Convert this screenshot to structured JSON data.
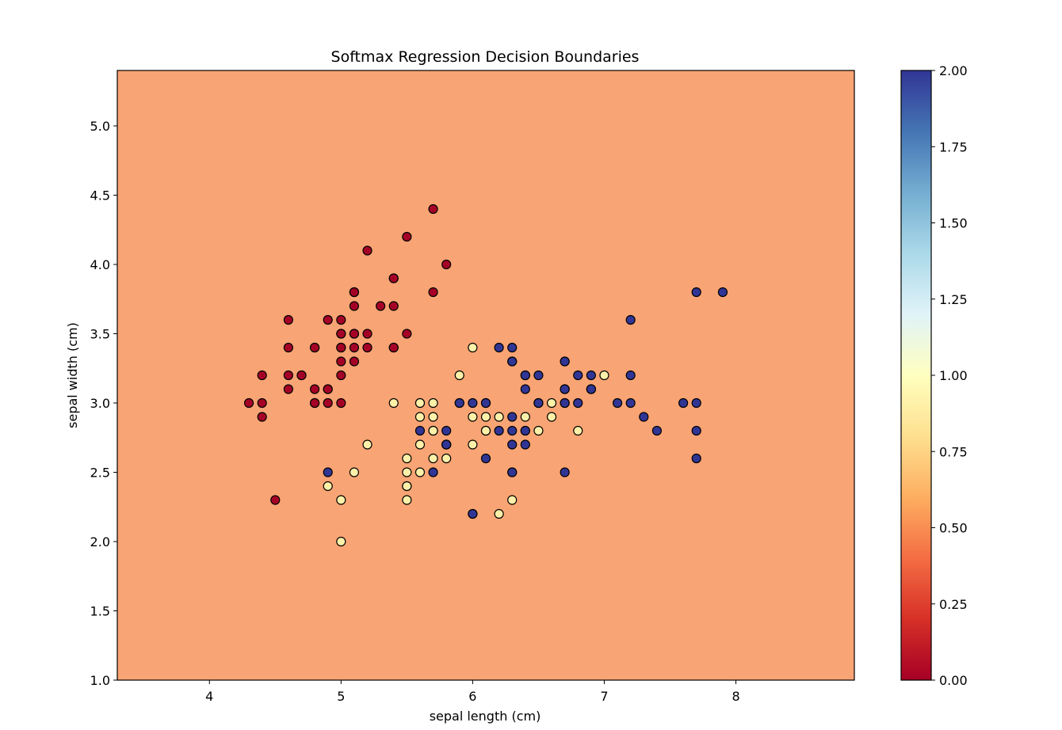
{
  "chart_data": {
    "type": "scatter",
    "title": "Softmax Regression Decision Boundaries",
    "xlabel": "sepal length (cm)",
    "ylabel": "sepal width (cm)",
    "xlim": [
      3.3,
      8.9
    ],
    "ylim": [
      1.0,
      5.4
    ],
    "xticks": [
      4,
      5,
      6,
      7,
      8
    ],
    "xtick_labels": [
      "4",
      "5",
      "6",
      "7",
      "8"
    ],
    "yticks": [
      1.0,
      1.5,
      2.0,
      2.5,
      3.0,
      3.5,
      4.0,
      4.5,
      5.0
    ],
    "ytick_labels": [
      "1.0",
      "1.5",
      "2.0",
      "2.5",
      "3.0",
      "3.5",
      "4.0",
      "4.5",
      "5.0"
    ],
    "grid": false,
    "background_region": {
      "predicted_class_value": 0.5,
      "color": "#f9a474"
    },
    "colorbar": {
      "colormap": "RdYlBu",
      "range": [
        0.0,
        2.0
      ],
      "ticks": [
        0.0,
        0.25,
        0.5,
        0.75,
        1.0,
        1.25,
        1.5,
        1.75,
        2.0
      ],
      "tick_labels": [
        "0.00",
        "0.25",
        "0.50",
        "0.75",
        "1.00",
        "1.25",
        "1.50",
        "1.75",
        "2.00"
      ],
      "stops": [
        "#a50026",
        "#d73027",
        "#f46d43",
        "#fdae61",
        "#fee090",
        "#ffffbf",
        "#e0f3f8",
        "#abd9e9",
        "#74add1",
        "#4575b4",
        "#313695"
      ]
    },
    "class_colors": {
      "0": "#a50026",
      "1": "#fdf1a9",
      "2": "#313695"
    },
    "series": [
      {
        "class": 0,
        "points": [
          [
            5.1,
            3.5
          ],
          [
            4.9,
            3.0
          ],
          [
            4.7,
            3.2
          ],
          [
            4.6,
            3.1
          ],
          [
            5.0,
            3.6
          ],
          [
            5.4,
            3.9
          ],
          [
            4.6,
            3.4
          ],
          [
            5.0,
            3.4
          ],
          [
            4.4,
            2.9
          ],
          [
            4.9,
            3.1
          ],
          [
            5.4,
            3.7
          ],
          [
            4.8,
            3.4
          ],
          [
            4.8,
            3.0
          ],
          [
            4.3,
            3.0
          ],
          [
            5.8,
            4.0
          ],
          [
            5.7,
            4.4
          ],
          [
            5.4,
            3.9
          ],
          [
            5.1,
            3.5
          ],
          [
            5.7,
            3.8
          ],
          [
            5.1,
            3.8
          ],
          [
            5.4,
            3.4
          ],
          [
            5.1,
            3.7
          ],
          [
            4.6,
            3.6
          ],
          [
            5.1,
            3.3
          ],
          [
            4.8,
            3.4
          ],
          [
            5.0,
            3.0
          ],
          [
            5.0,
            3.4
          ],
          [
            5.2,
            3.5
          ],
          [
            5.2,
            3.4
          ],
          [
            4.7,
            3.2
          ],
          [
            4.8,
            3.1
          ],
          [
            5.4,
            3.4
          ],
          [
            5.2,
            4.1
          ],
          [
            5.5,
            4.2
          ],
          [
            4.9,
            3.1
          ],
          [
            5.0,
            3.2
          ],
          [
            5.5,
            3.5
          ],
          [
            4.9,
            3.6
          ],
          [
            4.4,
            3.0
          ],
          [
            5.1,
            3.4
          ],
          [
            5.0,
            3.5
          ],
          [
            4.5,
            2.3
          ],
          [
            4.4,
            3.2
          ],
          [
            5.0,
            3.5
          ],
          [
            5.1,
            3.8
          ],
          [
            4.8,
            3.0
          ],
          [
            5.1,
            3.8
          ],
          [
            4.6,
            3.2
          ],
          [
            5.3,
            3.7
          ],
          [
            5.0,
            3.3
          ]
        ]
      },
      {
        "class": 1,
        "points": [
          [
            7.0,
            3.2
          ],
          [
            6.4,
            3.2
          ],
          [
            6.9,
            3.1
          ],
          [
            5.5,
            2.3
          ],
          [
            6.5,
            2.8
          ],
          [
            5.7,
            2.8
          ],
          [
            6.3,
            3.3
          ],
          [
            4.9,
            2.4
          ],
          [
            6.6,
            2.9
          ],
          [
            5.2,
            2.7
          ],
          [
            5.0,
            2.0
          ],
          [
            5.9,
            3.0
          ],
          [
            6.0,
            2.2
          ],
          [
            6.1,
            2.9
          ],
          [
            5.6,
            2.9
          ],
          [
            6.7,
            3.1
          ],
          [
            5.6,
            3.0
          ],
          [
            5.8,
            2.7
          ],
          [
            6.2,
            2.2
          ],
          [
            5.6,
            2.5
          ],
          [
            5.9,
            3.2
          ],
          [
            6.1,
            2.8
          ],
          [
            6.3,
            2.5
          ],
          [
            6.1,
            2.8
          ],
          [
            6.4,
            2.9
          ],
          [
            6.6,
            3.0
          ],
          [
            6.8,
            2.8
          ],
          [
            6.7,
            3.0
          ],
          [
            6.0,
            2.9
          ],
          [
            5.7,
            2.6
          ],
          [
            5.5,
            2.4
          ],
          [
            5.5,
            2.4
          ],
          [
            5.8,
            2.7
          ],
          [
            6.0,
            2.7
          ],
          [
            5.4,
            3.0
          ],
          [
            6.0,
            3.4
          ],
          [
            6.7,
            3.1
          ],
          [
            6.3,
            2.3
          ],
          [
            5.6,
            3.0
          ],
          [
            5.5,
            2.5
          ],
          [
            5.5,
            2.6
          ],
          [
            6.1,
            3.0
          ],
          [
            5.8,
            2.6
          ],
          [
            5.0,
            2.3
          ],
          [
            5.6,
            2.7
          ],
          [
            5.7,
            3.0
          ],
          [
            5.7,
            2.9
          ],
          [
            6.2,
            2.9
          ],
          [
            5.1,
            2.5
          ],
          [
            5.7,
            2.8
          ]
        ]
      },
      {
        "class": 2,
        "points": [
          [
            6.3,
            3.3
          ],
          [
            5.8,
            2.7
          ],
          [
            7.1,
            3.0
          ],
          [
            6.3,
            2.9
          ],
          [
            6.5,
            3.0
          ],
          [
            7.6,
            3.0
          ],
          [
            4.9,
            2.5
          ],
          [
            7.3,
            2.9
          ],
          [
            6.7,
            2.5
          ],
          [
            7.2,
            3.6
          ],
          [
            6.5,
            3.2
          ],
          [
            6.4,
            2.7
          ],
          [
            6.8,
            3.0
          ],
          [
            5.7,
            2.5
          ],
          [
            5.8,
            2.8
          ],
          [
            6.4,
            3.2
          ],
          [
            6.5,
            3.0
          ],
          [
            7.7,
            3.8
          ],
          [
            7.7,
            2.6
          ],
          [
            6.0,
            2.2
          ],
          [
            6.9,
            3.2
          ],
          [
            5.6,
            2.8
          ],
          [
            7.7,
            2.8
          ],
          [
            6.3,
            2.7
          ],
          [
            6.7,
            3.3
          ],
          [
            7.2,
            3.2
          ],
          [
            6.2,
            2.8
          ],
          [
            6.1,
            3.0
          ],
          [
            6.4,
            2.8
          ],
          [
            7.2,
            3.0
          ],
          [
            7.4,
            2.8
          ],
          [
            7.9,
            3.8
          ],
          [
            6.4,
            2.8
          ],
          [
            6.3,
            2.8
          ],
          [
            6.1,
            2.6
          ],
          [
            7.7,
            3.0
          ],
          [
            6.3,
            3.4
          ],
          [
            6.4,
            3.1
          ],
          [
            6.0,
            3.0
          ],
          [
            6.9,
            3.1
          ],
          [
            6.7,
            3.1
          ],
          [
            6.9,
            3.1
          ],
          [
            5.8,
            2.7
          ],
          [
            6.8,
            3.2
          ],
          [
            6.7,
            3.3
          ],
          [
            6.7,
            3.0
          ],
          [
            6.3,
            2.5
          ],
          [
            6.5,
            3.0
          ],
          [
            6.2,
            3.4
          ],
          [
            5.9,
            3.0
          ]
        ]
      }
    ]
  }
}
